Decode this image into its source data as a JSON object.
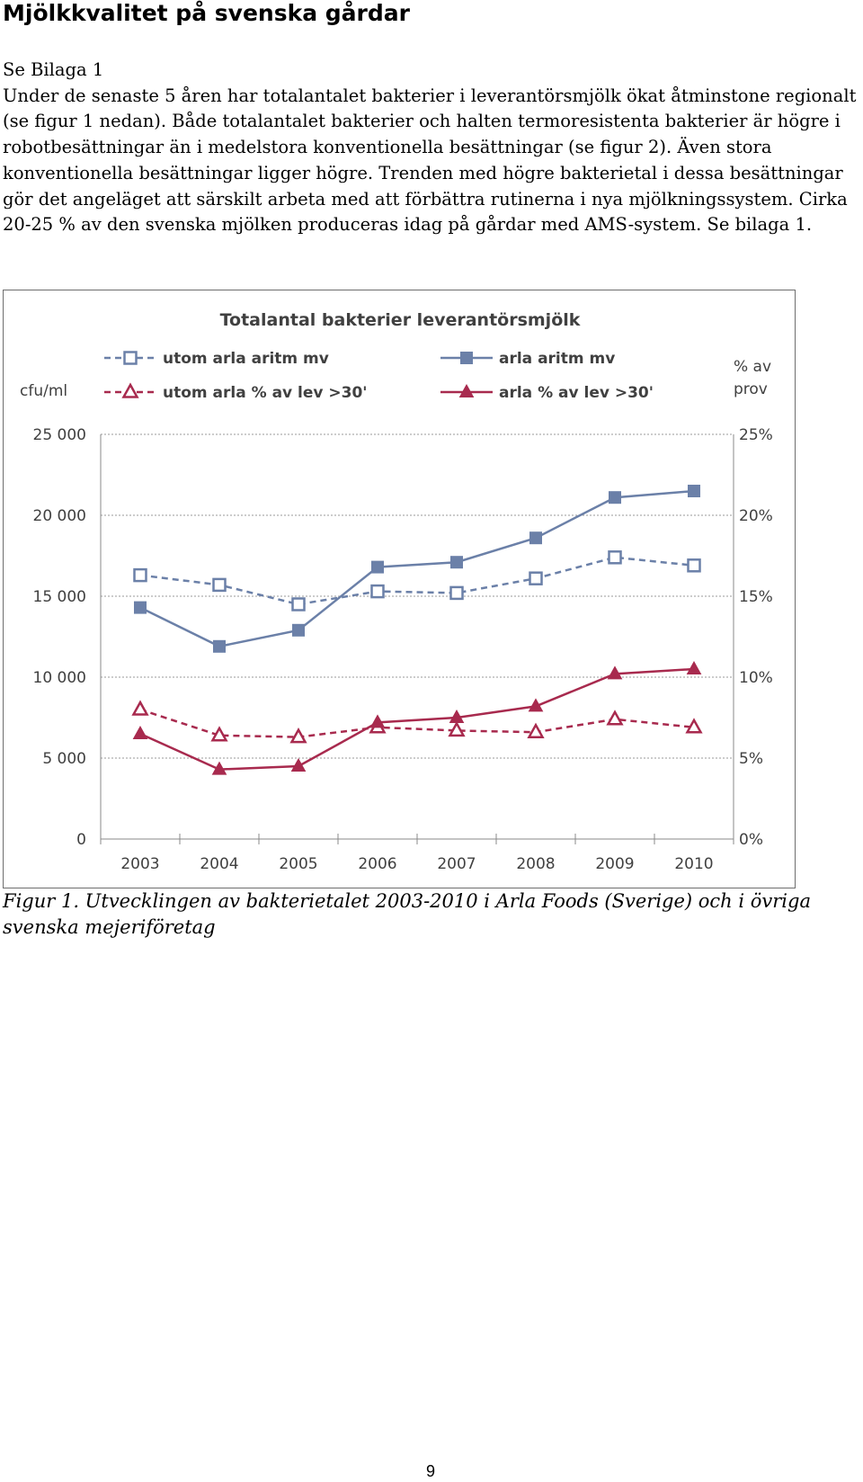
{
  "document": {
    "title": "Mjölkkvalitet på svenska gårdar",
    "paragraph_line_1": "Se Bilaga 1",
    "paragraph_body": "Under de senaste 5 åren har totalantalet bakterier i leverantörsmjölk ökat åtminstone regionalt (se figur 1 nedan). Både totalantalet bakterier och halten termoresistenta bakterier är högre i robotbesättningar än i medelstora konventionella besättningar (se figur 2). Även stora konventionella besättningar ligger högre. Trenden med högre bakterietal i dessa besättningar gör det angeläget att särskilt arbeta med att förbättra rutinerna i nya mjölkningssystem. Cirka 20-25 % av den svenska mjölken produceras idag på gårdar med AMS-system. Se bilaga 1.",
    "caption": "Figur 1. Utvecklingen av bakterietalet 2003-2010 i Arla Foods (Sverige) och i övriga svenska mejeriföretag",
    "page_number": "9"
  },
  "chart_data": {
    "type": "line",
    "title": "Totalantal bakterier leverantörsmjölk",
    "ylabel_left": "cfu/ml",
    "ylabel_right": [
      "% av",
      "prov"
    ],
    "categories": [
      "2003",
      "2004",
      "2005",
      "2006",
      "2007",
      "2008",
      "2009",
      "2010"
    ],
    "ylim_left": [
      0,
      25000
    ],
    "ylim_right": [
      0,
      25
    ],
    "left_ticks": [
      "0",
      "5 000",
      "10 000",
      "15 000",
      "20 000",
      "25 000"
    ],
    "right_ticks": [
      "0%",
      "5%",
      "10%",
      "15%",
      "20%",
      "25%"
    ],
    "grid": "horizontal dotted",
    "legend_placement": "top",
    "series": [
      {
        "name": "utom arla aritm mv",
        "axis": "left",
        "color": "#6b80a8",
        "dashed": true,
        "marker": "square-open",
        "values": [
          16300,
          15700,
          14500,
          15300,
          15200,
          16100,
          17400,
          16900
        ]
      },
      {
        "name": "arla aritm mv",
        "axis": "left",
        "color": "#6b80a8",
        "dashed": false,
        "marker": "square-filled",
        "values": [
          14300,
          11900,
          12900,
          16800,
          17100,
          18600,
          21100,
          21500
        ]
      },
      {
        "name": "utom arla % av lev >30'",
        "axis": "right",
        "color": "#a82a4e",
        "dashed": true,
        "marker": "triangle-open",
        "values": [
          8.0,
          6.4,
          6.3,
          6.9,
          6.7,
          6.6,
          7.4,
          6.9
        ]
      },
      {
        "name": "arla % av lev >30'",
        "axis": "right",
        "color": "#a82a4e",
        "dashed": false,
        "marker": "triangle-filled",
        "values": [
          6.5,
          4.3,
          4.5,
          7.2,
          7.5,
          8.2,
          10.2,
          10.5
        ]
      }
    ]
  }
}
